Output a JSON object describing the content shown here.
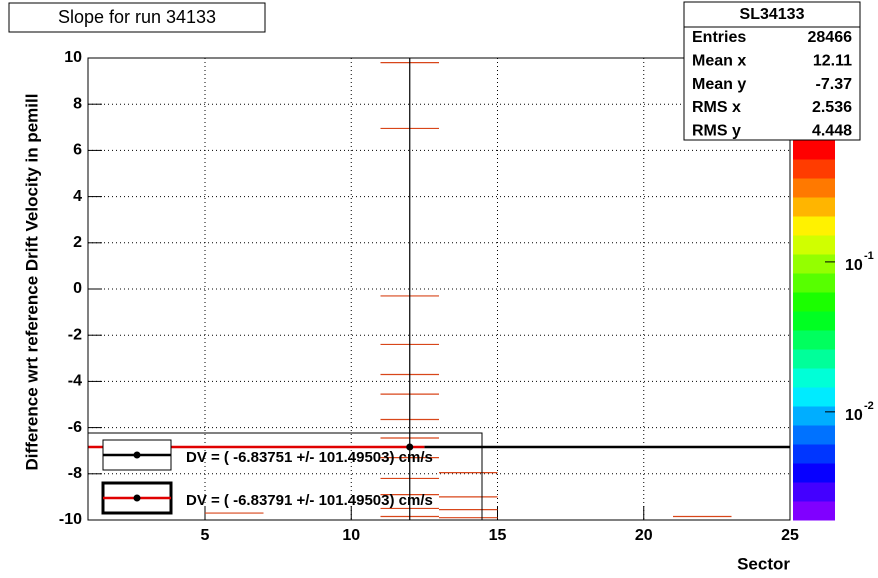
{
  "chart_data": {
    "type": "heatmap",
    "title": "Slope for run 34133",
    "xlabel": "Sector",
    "ylabel": "Difference wrt reference Drift Velocity in pemill",
    "xlim": [
      1,
      25
    ],
    "ylim": [
      -10,
      10
    ],
    "xticks": [
      5,
      10,
      15,
      20,
      25
    ],
    "yticks": [
      -10,
      -8,
      -6,
      -4,
      -2,
      0,
      2,
      4,
      6,
      8,
      10
    ],
    "grid": true,
    "cell_color": "#d8461a",
    "cells": [
      {
        "x": [
          11,
          13
        ],
        "y": 9.8
      },
      {
        "x": [
          11,
          13
        ],
        "y": 6.95
      },
      {
        "x": [
          11,
          13
        ],
        "y": -0.3
      },
      {
        "x": [
          11,
          13
        ],
        "y": -2.4
      },
      {
        "x": [
          11,
          13
        ],
        "y": -3.7
      },
      {
        "x": [
          11,
          13
        ],
        "y": -4.55
      },
      {
        "x": [
          11,
          13
        ],
        "y": -5.65
      },
      {
        "x": [
          11,
          13
        ],
        "y": -6.45
      },
      {
        "x": [
          11,
          13
        ],
        "y": -7.3
      },
      {
        "x": [
          11,
          13
        ],
        "y": -8.2
      },
      {
        "x": [
          11,
          13
        ],
        "y": -8.9
      },
      {
        "x": [
          11,
          13
        ],
        "y": -9.5
      },
      {
        "x": [
          11,
          13
        ],
        "y": -9.85
      },
      {
        "x": [
          13,
          15
        ],
        "y": -7.95
      },
      {
        "x": [
          13,
          15
        ],
        "y": -9.0
      },
      {
        "x": [
          13,
          15
        ],
        "y": -9.55
      },
      {
        "x": [
          13,
          15
        ],
        "y": -9.9
      },
      {
        "x": [
          5,
          7
        ],
        "y": -9.7
      },
      {
        "x": [
          21,
          23
        ],
        "y": -9.85
      }
    ],
    "point": {
      "x": 12,
      "y": -6.84,
      "color": "#000000"
    },
    "fits": [
      {
        "value": -6.83751,
        "error": 101.49503,
        "color": "#000000",
        "xrange": [
          12.5,
          25
        ],
        "label": "DV = (  -6.83751 +/-  101.49503) cm/s"
      },
      {
        "value": -6.83791,
        "error": 101.49503,
        "color": "#e00000",
        "xrange": [
          1,
          12.5
        ],
        "label": "DV = (  -6.83791 +/-  101.49503) cm/s"
      }
    ],
    "stats": {
      "title": "SL34133",
      "rows": [
        [
          "Entries",
          "28466"
        ],
        [
          "Mean x",
          "12.11"
        ],
        [
          "Mean y",
          "-7.37"
        ],
        [
          "RMS x",
          "2.536"
        ],
        [
          "RMS y",
          "4.448"
        ]
      ]
    },
    "zlog": true,
    "zlim": [
      0.0019,
      0.65
    ],
    "zticks": [
      {
        "value": 0.01,
        "label": "10",
        "exponent": "-2"
      },
      {
        "value": 0.1,
        "label": "10",
        "exponent": "-1"
      }
    ]
  }
}
